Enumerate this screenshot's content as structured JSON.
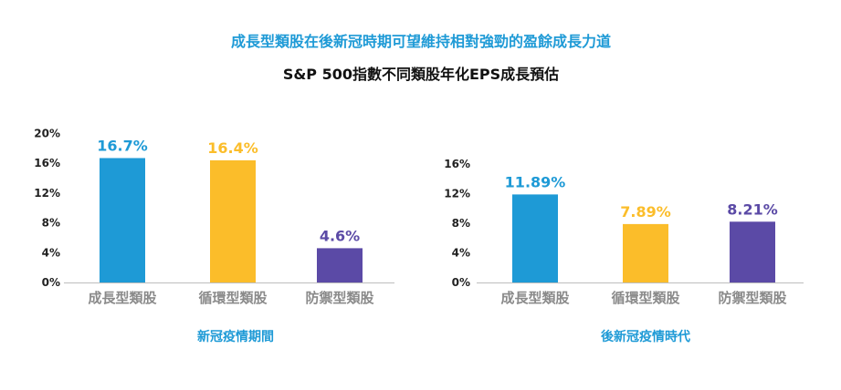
{
  "headline": "成長型類股在後新冠時期可望維持相對強勁的盈餘成長力道",
  "subtitle": "S&P 500指數不同類股年化EPS成長預估",
  "colors": {
    "headline": "#1e9ad6",
    "panel_title": "#1e9ad6",
    "axis": "#bdbdbd",
    "growth": "#1e9ad6",
    "cyclical": "#fbbd2a",
    "defensive": "#5b4aa6"
  },
  "chart_data": [
    {
      "type": "bar",
      "title": "新冠疫情期間",
      "categories": [
        "成長型類股",
        "循環型類股",
        "防禦型類股"
      ],
      "values": [
        16.7,
        16.4,
        4.6
      ],
      "value_labels": [
        "16.7%",
        "16.4%",
        "4.6%"
      ],
      "bar_colors": [
        "#1e9ad6",
        "#fbbd2a",
        "#5b4aa6"
      ],
      "ylim": [
        0,
        20
      ],
      "yticks": [
        0,
        4,
        8,
        12,
        16,
        20
      ],
      "ytick_labels": [
        "0%",
        "4%",
        "8%",
        "12%",
        "16%",
        "20%"
      ],
      "xlabel": "",
      "ylabel": "",
      "grid": false,
      "legend": "none"
    },
    {
      "type": "bar",
      "title": "後新冠疫情時代",
      "categories": [
        "成長型類股",
        "循環型類股",
        "防禦型類股"
      ],
      "values": [
        11.89,
        7.89,
        8.21
      ],
      "value_labels": [
        "11.89%",
        "7.89%",
        "8.21%"
      ],
      "bar_colors": [
        "#1e9ad6",
        "#fbbd2a",
        "#5b4aa6"
      ],
      "ylim": [
        0,
        16
      ],
      "yticks": [
        0,
        4,
        8,
        12,
        16
      ],
      "ytick_labels": [
        "0%",
        "4%",
        "8%",
        "12%",
        "16%"
      ],
      "xlabel": "",
      "ylabel": "",
      "grid": false,
      "legend": "none"
    }
  ]
}
